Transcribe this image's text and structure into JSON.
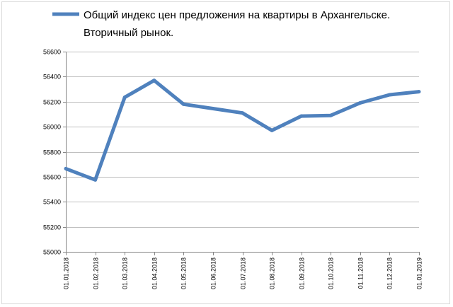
{
  "chart_data": {
    "type": "line",
    "title": "",
    "xlabel": "",
    "ylabel": "",
    "legend_position": "top",
    "grid": {
      "horizontal": true,
      "vertical": false
    },
    "ylim": [
      55000,
      56600
    ],
    "yticks": [
      55000,
      55200,
      55400,
      55600,
      55800,
      56000,
      56200,
      56400,
      56600
    ],
    "categories": [
      "01.01.2018",
      "01.02.2018",
      "01.03.2018",
      "01.04.2018",
      "01.05.2018",
      "01.06.2018",
      "01.07.2018",
      "01.08.2018",
      "01.09.2018",
      "01.10.2018",
      "01.11.2018",
      "01.12.2018",
      "01.01.2019"
    ],
    "series": [
      {
        "name": "Общий индекс цен предложения на квартиры в Архангельске. Вторичный рынок.",
        "legend_lines": [
          "Общий индекс цен предложения на квартиры в Архангельске.",
          "Вторичный рынок."
        ],
        "color": "#4f81bd",
        "values": [
          55665,
          55575,
          56235,
          56370,
          56180,
          56145,
          56110,
          55970,
          56085,
          56090,
          56190,
          56255,
          56280
        ]
      }
    ]
  }
}
